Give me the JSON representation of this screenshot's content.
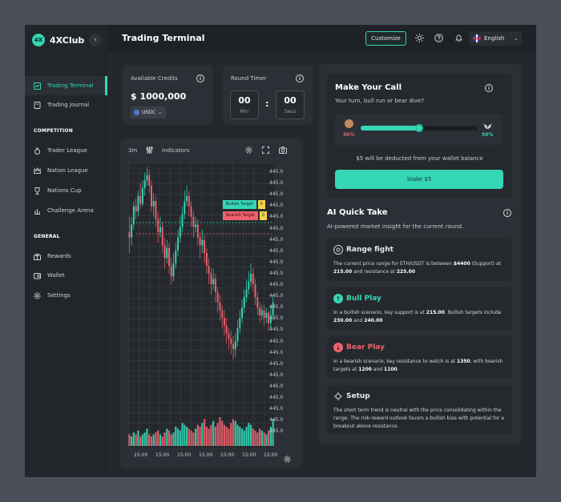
{
  "app": {
    "name": "4XClub",
    "logo_glyph": "4X"
  },
  "sidebar": {
    "items": [
      {
        "label": "Trading Terminal",
        "icon": "terminal-icon",
        "active": true
      },
      {
        "label": "Trading Journal",
        "icon": "journal-icon"
      }
    ],
    "competition_title": "COMPETITION",
    "competition": [
      {
        "label": "Trader League",
        "icon": "medal-icon"
      },
      {
        "label": "Nation League",
        "icon": "crown-icon"
      },
      {
        "label": "Nations Cup",
        "icon": "trophy-icon"
      },
      {
        "label": "Challenge Arena",
        "icon": "arena-icon"
      }
    ],
    "general_title": "GENERAL",
    "general": [
      {
        "label": "Rewards",
        "icon": "gift-icon"
      },
      {
        "label": "Wallet",
        "icon": "wallet-icon"
      },
      {
        "label": "Settings",
        "icon": "gear-icon"
      }
    ]
  },
  "header": {
    "title": "Trading Terminal",
    "customize_label": "Customize",
    "language": "English"
  },
  "credits": {
    "label": "Available Credits",
    "amount": "$ 1000,000",
    "currency": "USDC"
  },
  "timer": {
    "label": "Round Timer",
    "min": "00",
    "min_label": "Min",
    "sec": "00",
    "sec_label": "Secs",
    "separator": ":"
  },
  "chart": {
    "interval": "3m",
    "indicators_label": "Indicators",
    "y_ticks": [
      "445.0",
      "445.0",
      "445.0",
      "445.0",
      "445.0",
      "445.0",
      "445.0",
      "445.0",
      "445.0",
      "445.0",
      "445.0",
      "445.0",
      "445.0",
      "445.0",
      "445.0",
      "445.0",
      "445.0",
      "445.0",
      "445.0",
      "445.0",
      "445.0",
      "445.0",
      "445.0",
      "445.0"
    ],
    "x_ticks": [
      "15:00",
      "15:00",
      "15:00",
      "15:00",
      "15:00",
      "15:00",
      "15:00"
    ],
    "bullish_target": {
      "label": "Bullish Target",
      "value": "0"
    },
    "bearish_target": {
      "label": "Bearish Target",
      "value": "0"
    },
    "up_color": "#35d6b5",
    "down_color": "#f0616d"
  },
  "chart_data": {
    "type": "candlestick",
    "candles": [
      [
        60,
        58,
        66,
        52
      ],
      [
        58,
        63,
        66,
        55
      ],
      [
        63,
        70,
        72,
        61
      ],
      [
        70,
        68,
        73,
        65
      ],
      [
        68,
        74,
        76,
        66
      ],
      [
        74,
        71,
        79,
        69
      ],
      [
        71,
        77,
        80,
        70
      ],
      [
        77,
        80,
        83,
        74
      ],
      [
        80,
        82,
        85,
        78
      ],
      [
        82,
        78,
        84,
        75
      ],
      [
        78,
        70,
        80,
        68
      ],
      [
        70,
        72,
        75,
        66
      ],
      [
        72,
        65,
        74,
        62
      ],
      [
        65,
        60,
        68,
        56
      ],
      [
        60,
        62,
        66,
        58
      ],
      [
        62,
        55,
        64,
        52
      ],
      [
        55,
        50,
        58,
        46
      ],
      [
        50,
        54,
        57,
        48
      ],
      [
        54,
        47,
        56,
        44
      ],
      [
        47,
        43,
        50,
        40
      ],
      [
        43,
        48,
        52,
        41
      ],
      [
        48,
        53,
        56,
        46
      ],
      [
        53,
        58,
        61,
        51
      ],
      [
        58,
        62,
        66,
        56
      ],
      [
        62,
        67,
        70,
        60
      ],
      [
        67,
        72,
        76,
        65
      ],
      [
        72,
        74,
        78,
        70
      ],
      [
        74,
        70,
        76,
        66
      ],
      [
        70,
        66,
        72,
        62
      ],
      [
        66,
        62,
        68,
        58
      ],
      [
        62,
        63,
        66,
        60
      ],
      [
        63,
        58,
        65,
        55
      ],
      [
        58,
        55,
        60,
        50
      ],
      [
        55,
        57,
        61,
        52
      ],
      [
        57,
        52,
        59,
        48
      ],
      [
        52,
        47,
        54,
        44
      ],
      [
        47,
        44,
        50,
        40
      ],
      [
        44,
        40,
        46,
        36
      ],
      [
        40,
        42,
        46,
        38
      ],
      [
        42,
        37,
        44,
        33
      ],
      [
        37,
        33,
        39,
        29
      ],
      [
        33,
        30,
        36,
        26
      ],
      [
        30,
        27,
        32,
        23
      ],
      [
        27,
        24,
        30,
        20
      ],
      [
        24,
        21,
        27,
        17
      ],
      [
        21,
        19,
        23,
        15
      ],
      [
        19,
        17,
        22,
        13
      ],
      [
        17,
        15,
        20,
        11
      ],
      [
        15,
        18,
        21,
        12
      ],
      [
        18,
        23,
        26,
        16
      ],
      [
        23,
        27,
        30,
        21
      ],
      [
        27,
        31,
        34,
        25
      ],
      [
        31,
        35,
        38,
        29
      ],
      [
        35,
        38,
        42,
        33
      ],
      [
        38,
        41,
        45,
        36
      ],
      [
        41,
        44,
        48,
        39
      ],
      [
        44,
        40,
        46,
        37
      ],
      [
        40,
        35,
        42,
        32
      ],
      [
        35,
        31,
        37,
        28
      ],
      [
        31,
        28,
        33,
        25
      ],
      [
        28,
        30,
        32,
        26
      ],
      [
        30,
        27,
        32,
        24
      ],
      [
        27,
        29,
        31,
        25
      ],
      [
        29,
        25,
        30,
        22
      ],
      [
        25,
        28,
        32,
        23
      ],
      [
        28,
        33,
        36,
        26
      ]
    ],
    "volume": [
      6,
      5,
      7,
      6,
      8,
      5,
      6,
      7,
      9,
      6,
      5,
      6,
      7,
      8,
      6,
      5,
      7,
      9,
      8,
      6,
      7,
      10,
      9,
      8,
      12,
      11,
      10,
      9,
      8,
      7,
      9,
      11,
      10,
      12,
      14,
      10,
      9,
      11,
      13,
      10,
      12,
      15,
      13,
      11,
      10,
      9,
      12,
      14,
      13,
      11,
      10,
      9,
      8,
      10,
      12,
      11,
      9,
      8,
      7,
      9,
      8,
      7,
      6,
      8,
      10,
      14
    ]
  },
  "call": {
    "title": "Make Your Call",
    "subtitle": "Your turn, bull run or bear dive?",
    "bull_pct": "50%",
    "bear_pct": "50%",
    "slider_value": 0.5,
    "note": "$5 will be deducted from your wallet balance",
    "stake_label": "Stake $5"
  },
  "ai": {
    "title": "AI Quick Take",
    "subtitle": "AI-powered market insight for the current round.",
    "sections": [
      {
        "title": "Range fight",
        "icon": "target-icon",
        "text_parts": [
          "The current price range for ETH/USDT is between ",
          "$4400",
          " (Support) at ",
          "215.00",
          " and resistance at ",
          "225.00"
        ]
      },
      {
        "title": "Bull Play",
        "icon": "arrow-up-icon",
        "color": "#35d6b5",
        "text_parts": [
          "In a bullish scenario, key support is at ",
          "215.00",
          ". Bullish targets include ",
          "230.00",
          " and ",
          "240.00"
        ]
      },
      {
        "title": "Bear Play",
        "icon": "arrow-down-icon",
        "color": "#f0616d",
        "text_parts": [
          "In a bearish scenario, key resistance to watch is at ",
          "1350",
          ", with bearish targets at ",
          "1200",
          " and ",
          "1100",
          "."
        ]
      },
      {
        "title": "Setup",
        "icon": "crosshair-icon",
        "text_parts": [
          "The short term trend is neutral with the price consolidating within the range. The risk-reward outlook favors a bullish bias with potential for a breakout above resistance."
        ]
      }
    ]
  }
}
